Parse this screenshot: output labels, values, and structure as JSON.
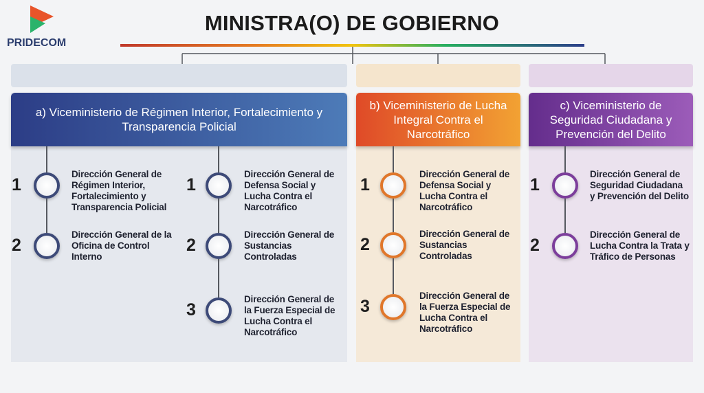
{
  "logo": {
    "name": "PRIDECOM"
  },
  "title": "MINISTRA(O) DE GOBIERNO",
  "columns": [
    {
      "heading": "a) Viceministerio de Régimen Interior, Fortalecimiento y Transparencia Policial",
      "items": [
        {
          "number": "1",
          "label": "Dirección General de Régimen Interior, Fortalecimiento y Transparencia Policial"
        },
        {
          "number": "2",
          "label": "Dirección General de la Oficina de Control Interno"
        },
        {
          "number": "1",
          "label": "Dirección General de Defensa Social y Lucha Contra el Narcotráfico"
        },
        {
          "number": "2",
          "label": "Dirección General de Sustancias Controladas"
        },
        {
          "number": "3",
          "label": "Dirección General de la Fuerza Especial de Lucha Contra el Narcotráfico"
        }
      ]
    },
    {
      "heading": "b) Viceministerio de Lucha Integral Contra el Narcotráfico",
      "items": [
        {
          "number": "1",
          "label": "Dirección General de Defensa Social y Lucha Contra el Narcotráfico"
        },
        {
          "number": "2",
          "label": "Dirección General de Sustancias Controladas"
        },
        {
          "number": "3",
          "label": "Dirección General de la Fuerza Especial de Lucha Contra el Narcotráfico"
        }
      ]
    },
    {
      "heading": "c) Viceministerio de Seguridad Ciudadana y Prevención del Delito",
      "items": [
        {
          "number": "1",
          "label": "Dirección General de Seguridad Ciudadana y Prevención del Delito"
        },
        {
          "number": "2",
          "label": "Dirección General de Lucha Contra la Trata y Tráfico de Personas"
        }
      ]
    }
  ]
}
